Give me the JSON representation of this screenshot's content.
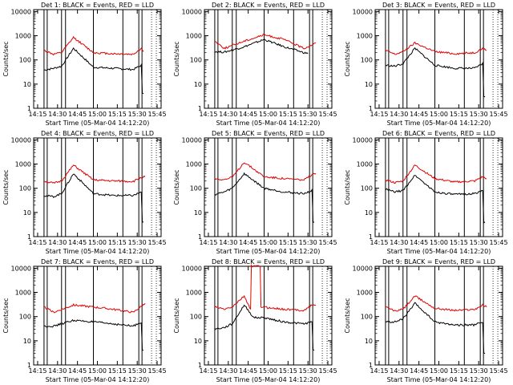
{
  "figure": {
    "background": "#ffffff",
    "events_color": "#000000",
    "lld_color": "#e00000"
  },
  "chart_data": [
    {
      "type": "line",
      "title": "Det 1: BLACK = Events, RED = LLD",
      "xlabel": "Start Time (05-Mar-04 14:12:20)",
      "ylabel": "Counts/sec",
      "xticks": [
        "14:15",
        "14:30",
        "14:45",
        "15:00",
        "15:15",
        "15:30",
        "15:45"
      ],
      "yticks": [
        "1",
        "10",
        "100",
        "1000",
        "10000"
      ],
      "yscale": "log",
      "ylim": [
        1,
        12000
      ],
      "xlim_minutes": [
        14.2,
        14.3
      ],
      "series": [
        {
          "name": "Events",
          "color": "#000000",
          "x": [
            14.33,
            14.45,
            14.55,
            14.7,
            14.95,
            15.2,
            15.45,
            15.55,
            15.58
          ],
          "y": [
            38,
            45,
            55,
            300,
            50,
            45,
            40,
            60,
            4
          ]
        },
        {
          "name": "LLD",
          "color": "#e00000",
          "x": [
            14.33,
            14.45,
            14.55,
            14.7,
            14.95,
            15.2,
            15.45,
            15.55,
            15.58
          ],
          "y": [
            250,
            170,
            200,
            850,
            200,
            180,
            170,
            300,
            220
          ]
        }
      ]
    },
    {
      "type": "line",
      "title": "Det 2: BLACK = Events, RED = LLD",
      "xlabel": "Start Time (05-Mar-04 14:12:20)",
      "ylabel": "Counts/sec",
      "xticks": [
        "14:15",
        "14:30",
        "14:45",
        "15:00",
        "15:15",
        "15:30",
        "15:45"
      ],
      "yticks": [
        "1",
        "10",
        "100",
        "1000",
        "10000"
      ],
      "yscale": "log",
      "ylim": [
        1,
        12000
      ],
      "series": [
        {
          "name": "Events",
          "color": "#000000",
          "x": [
            14.33,
            14.45,
            14.7,
            14.95,
            15.2,
            15.45,
            15.5
          ],
          "y": [
            220,
            210,
            350,
            700,
            350,
            200,
            180
          ]
        },
        {
          "name": "LLD",
          "color": "#e00000",
          "x": [
            14.33,
            14.45,
            14.7,
            14.95,
            15.2,
            15.45,
            15.6
          ],
          "y": [
            600,
            300,
            600,
            1100,
            700,
            300,
            500
          ]
        }
      ]
    },
    {
      "type": "line",
      "title": "Det 3: BLACK = Events, RED = LLD",
      "xlabel": "Start Time (05-Mar-04 14:12:20)",
      "ylabel": "Counts/sec",
      "xticks": [
        "14:15",
        "14:30",
        "14:45",
        "15:00",
        "15:15",
        "15:30",
        "15:45"
      ],
      "yticks": [
        "1",
        "10",
        "100",
        "1000",
        "10000"
      ],
      "yscale": "log",
      "ylim": [
        1,
        12000
      ],
      "series": [
        {
          "name": "Events",
          "color": "#000000",
          "x": [
            14.33,
            14.45,
            14.55,
            14.7,
            14.95,
            15.2,
            15.45,
            15.55,
            15.58
          ],
          "y": [
            60,
            55,
            70,
            300,
            60,
            45,
            45,
            70,
            3
          ]
        },
        {
          "name": "LLD",
          "color": "#e00000",
          "x": [
            14.33,
            14.45,
            14.55,
            14.7,
            14.95,
            15.2,
            15.45,
            15.55,
            15.6
          ],
          "y": [
            250,
            170,
            220,
            500,
            220,
            180,
            200,
            300,
            250
          ]
        }
      ]
    },
    {
      "type": "line",
      "title": "Det 4: BLACK = Events, RED = LLD",
      "xlabel": "Start Time (05-Mar-04 14:12:20)",
      "ylabel": "Counts/sec",
      "xticks": [
        "14:15",
        "14:30",
        "14:45",
        "15:00",
        "15:15",
        "15:30",
        "15:45"
      ],
      "yticks": [
        "1",
        "10",
        "100",
        "1000",
        "10000"
      ],
      "yscale": "log",
      "ylim": [
        1,
        12000
      ],
      "series": [
        {
          "name": "Events",
          "color": "#000000",
          "x": [
            14.33,
            14.45,
            14.55,
            14.7,
            14.95,
            15.2,
            15.45,
            15.55,
            15.58
          ],
          "y": [
            50,
            45,
            60,
            400,
            60,
            50,
            50,
            70,
            4
          ]
        },
        {
          "name": "LLD",
          "color": "#e00000",
          "x": [
            14.33,
            14.45,
            14.55,
            14.7,
            14.95,
            15.2,
            15.45,
            15.55,
            15.6
          ],
          "y": [
            200,
            160,
            200,
            900,
            220,
            200,
            190,
            280,
            300
          ]
        }
      ]
    },
    {
      "type": "line",
      "title": "Det 5: BLACK = Events, RED = LLD",
      "xlabel": "Start Time (05-Mar-04 14:12:20)",
      "ylabel": "Counts/sec",
      "xticks": [
        "14:15",
        "14:30",
        "14:45",
        "15:00",
        "15:15",
        "15:30",
        "15:45"
      ],
      "yticks": [
        "1",
        "10",
        "100",
        "1000",
        "10000"
      ],
      "yscale": "log",
      "ylim": [
        1,
        12000
      ],
      "series": [
        {
          "name": "Events",
          "color": "#000000",
          "x": [
            14.33,
            14.45,
            14.55,
            14.7,
            14.95,
            15.2,
            15.45,
            15.55,
            15.58
          ],
          "y": [
            55,
            70,
            100,
            400,
            100,
            70,
            60,
            80,
            4
          ]
        },
        {
          "name": "LLD",
          "color": "#e00000",
          "x": [
            14.33,
            14.45,
            14.55,
            14.7,
            14.95,
            15.2,
            15.45,
            15.55,
            15.6
          ],
          "y": [
            250,
            230,
            280,
            1200,
            300,
            250,
            220,
            350,
            400
          ]
        }
      ]
    },
    {
      "type": "line",
      "title": "Det 6: BLACK = Events, RED = LLD",
      "xlabel": "Start Time (05-Mar-04 14:12:20)",
      "ylabel": "Counts/sec",
      "xticks": [
        "14:15",
        "14:30",
        "14:45",
        "15:00",
        "15:15",
        "15:30",
        "15:45"
      ],
      "yticks": [
        "1",
        "10",
        "100",
        "1000",
        "10000"
      ],
      "yscale": "log",
      "ylim": [
        1,
        12000
      ],
      "series": [
        {
          "name": "Events",
          "color": "#000000",
          "x": [
            14.33,
            14.45,
            14.55,
            14.7,
            14.95,
            15.2,
            15.45,
            15.55,
            15.58
          ],
          "y": [
            90,
            70,
            80,
            350,
            70,
            55,
            60,
            80,
            4
          ]
        },
        {
          "name": "LLD",
          "color": "#e00000",
          "x": [
            14.33,
            14.45,
            14.55,
            14.7,
            14.95,
            15.2,
            15.45,
            15.55,
            15.6
          ],
          "y": [
            220,
            170,
            200,
            900,
            250,
            180,
            200,
            300,
            250
          ]
        }
      ]
    },
    {
      "type": "line",
      "title": "Det 7: BLACK = Events, RED = LLD",
      "xlabel": "Start Time (05-Mar-04 14:12:20)",
      "ylabel": "Counts/sec",
      "xticks": [
        "14:15",
        "14:30",
        "14:45",
        "15:00",
        "15:15",
        "15:30",
        "15:45"
      ],
      "yticks": [
        "1",
        "10",
        "100",
        "1000",
        "10000"
      ],
      "yscale": "log",
      "ylim": [
        1,
        12000
      ],
      "series": [
        {
          "name": "Events",
          "color": "#000000",
          "x": [
            14.33,
            14.45,
            14.7,
            14.95,
            15.2,
            15.45,
            15.55,
            15.58
          ],
          "y": [
            40,
            40,
            70,
            60,
            50,
            40,
            60,
            4
          ]
        },
        {
          "name": "LLD",
          "color": "#e00000",
          "x": [
            14.33,
            14.45,
            14.7,
            14.95,
            15.2,
            15.45,
            15.6
          ],
          "y": [
            250,
            150,
            300,
            250,
            200,
            150,
            350
          ]
        }
      ]
    },
    {
      "type": "line",
      "title": "Det 8: BLACK = Events, RED = LLD",
      "xlabel": "Start Time (05-Mar-04 14:12:20)",
      "ylabel": "Counts/sec",
      "xticks": [
        "14:15",
        "14:30",
        "14:45",
        "15:00",
        "15:15",
        "15:30",
        "15:45"
      ],
      "yticks": [
        "1",
        "10",
        "100",
        "1000",
        "10000"
      ],
      "yscale": "log",
      "ylim": [
        1,
        12000
      ],
      "series": [
        {
          "name": "Events",
          "color": "#000000",
          "x": [
            14.33,
            14.45,
            14.55,
            14.7,
            14.82,
            14.95,
            15.2,
            15.45,
            15.55,
            15.58
          ],
          "y": [
            30,
            35,
            50,
            300,
            90,
            90,
            60,
            50,
            60,
            4
          ]
        },
        {
          "name": "LLD",
          "color": "#e00000",
          "x": [
            14.33,
            14.45,
            14.55,
            14.7,
            14.78,
            14.8,
            14.9,
            14.92,
            15.2,
            15.45,
            15.55,
            15.6
          ],
          "y": [
            250,
            200,
            250,
            700,
            200,
            12000,
            12000,
            250,
            200,
            180,
            300,
            300
          ]
        }
      ]
    },
    {
      "type": "line",
      "title": "Det 9: BLACK = Events, RED = LLD",
      "xlabel": "Start Time (05-Mar-04 14:12:20)",
      "ylabel": "Counts/sec",
      "xticks": [
        "14:15",
        "14:30",
        "14:45",
        "15:00",
        "15:15",
        "15:30",
        "15:45"
      ],
      "yticks": [
        "1",
        "10",
        "100",
        "1000",
        "10000"
      ],
      "yscale": "log",
      "ylim": [
        1,
        12000
      ],
      "series": [
        {
          "name": "Events",
          "color": "#000000",
          "x": [
            14.33,
            14.45,
            14.55,
            14.7,
            14.95,
            15.2,
            15.45,
            15.55,
            15.58
          ],
          "y": [
            60,
            60,
            80,
            350,
            60,
            45,
            45,
            60,
            3
          ]
        },
        {
          "name": "LLD",
          "color": "#e00000",
          "x": [
            14.33,
            14.45,
            14.55,
            14.7,
            14.95,
            15.2,
            15.45,
            15.55,
            15.6
          ],
          "y": [
            250,
            170,
            200,
            700,
            220,
            180,
            200,
            300,
            250
          ]
        }
      ]
    }
  ]
}
